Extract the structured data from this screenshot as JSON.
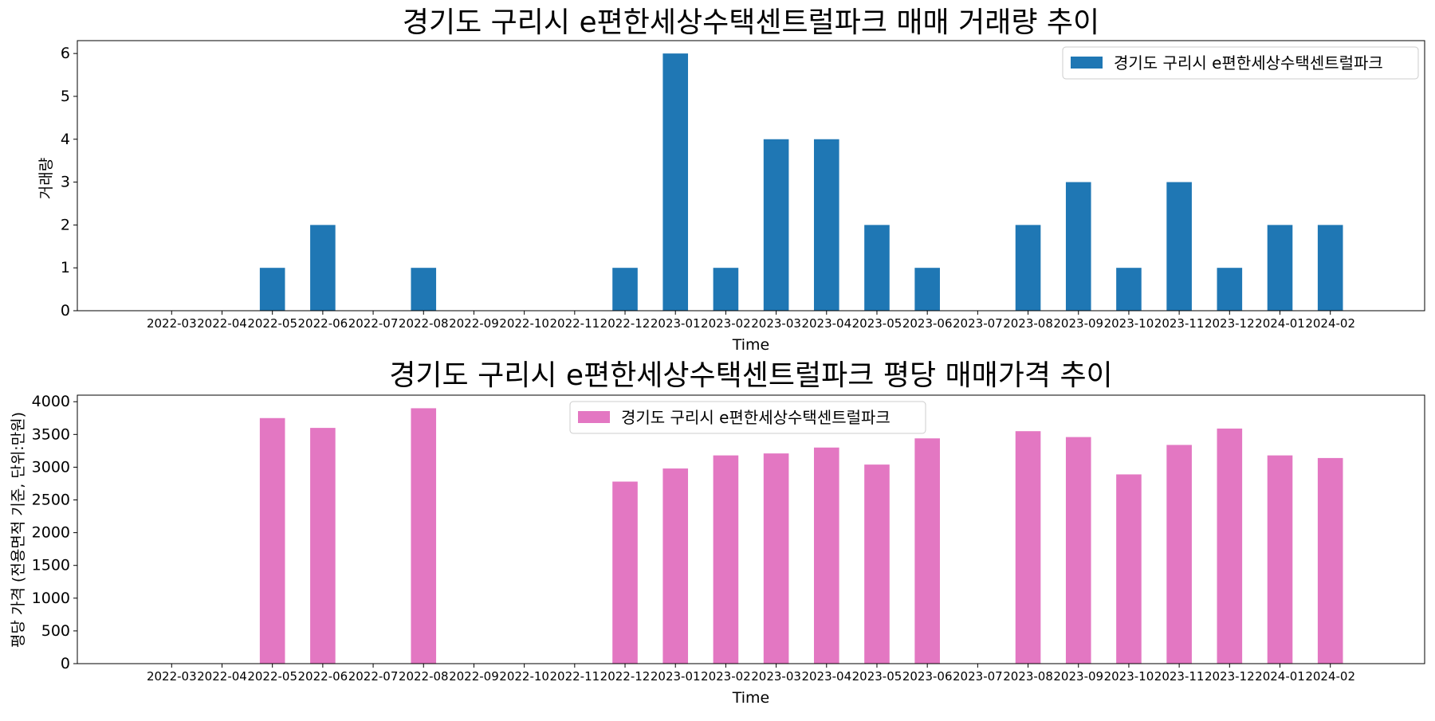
{
  "chart_data": [
    {
      "type": "bar",
      "title": "경기도 구리시 e편한세상수택센트럴파크 매매 거래량 추이",
      "xlabel": "Time",
      "ylabel": "거래량",
      "ylim": [
        0,
        6.3
      ],
      "yticks": [
        0,
        1,
        2,
        3,
        4,
        5,
        6
      ],
      "legend_position": "upper right",
      "categories": [
        "2022-03",
        "2022-04",
        "2022-05",
        "2022-06",
        "2022-07",
        "2022-08",
        "2022-09",
        "2022-10",
        "2022-11",
        "2022-12",
        "2023-01",
        "2023-02",
        "2023-03",
        "2023-04",
        "2023-05",
        "2023-06",
        "2023-07",
        "2023-08",
        "2023-09",
        "2023-10",
        "2023-11",
        "2023-12",
        "2024-01",
        "2024-02"
      ],
      "series": [
        {
          "name": "경기도 구리시 e편한세상수택센트럴파크",
          "color": "#1f77b4",
          "values": [
            0,
            0,
            1,
            2,
            0,
            1,
            0,
            0,
            0,
            1,
            6,
            1,
            4,
            4,
            2,
            1,
            0,
            2,
            3,
            1,
            3,
            1,
            2,
            2
          ]
        }
      ]
    },
    {
      "type": "bar",
      "title": "경기도 구리시 e편한세상수택센트럴파크 평당 매매가격 추이",
      "xlabel": "Time",
      "ylabel": "평당 가격 (전용면적 기준, 단위:만원)",
      "ylim": [
        0,
        4100
      ],
      "yticks": [
        0,
        500,
        1000,
        1500,
        2000,
        2500,
        3000,
        3500,
        4000
      ],
      "legend_position": "upper center",
      "categories": [
        "2022-03",
        "2022-04",
        "2022-05",
        "2022-06",
        "2022-07",
        "2022-08",
        "2022-09",
        "2022-10",
        "2022-11",
        "2022-12",
        "2023-01",
        "2023-02",
        "2023-03",
        "2023-04",
        "2023-05",
        "2023-06",
        "2023-07",
        "2023-08",
        "2023-09",
        "2023-10",
        "2023-11",
        "2023-12",
        "2024-01",
        "2024-02"
      ],
      "series": [
        {
          "name": "경기도 구리시 e편한세상수택센트럴파크",
          "color": "#e377c2",
          "values": [
            0,
            0,
            3750,
            3600,
            0,
            3900,
            0,
            0,
            0,
            2780,
            2980,
            3180,
            3210,
            3300,
            3040,
            3440,
            0,
            3550,
            3460,
            2890,
            3340,
            3590,
            3180,
            3140
          ]
        }
      ]
    }
  ]
}
